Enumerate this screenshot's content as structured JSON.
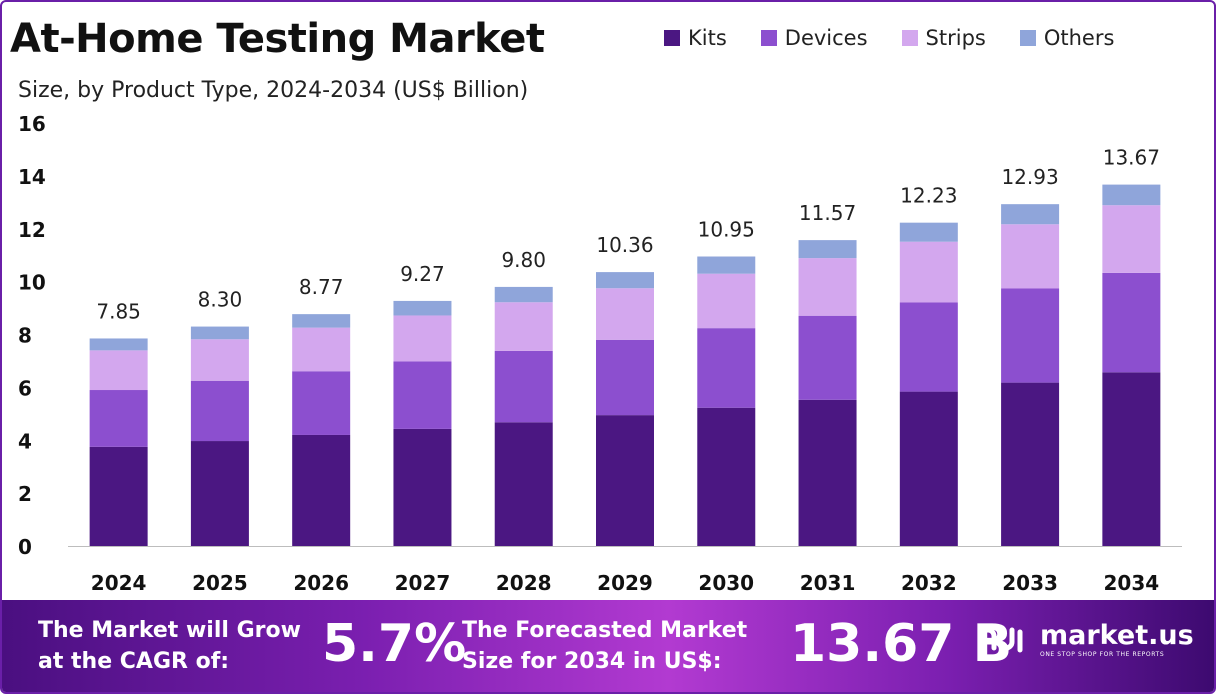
{
  "header": {
    "title": "At-Home Testing Market",
    "subtitle": "Size, by Product Type, 2024-2034 (US$ Billion)"
  },
  "legend": [
    {
      "label": "Kits",
      "color": "#4b1782"
    },
    {
      "label": "Devices",
      "color": "#8c4fcf"
    },
    {
      "label": "Strips",
      "color": "#d3a7ee"
    },
    {
      "label": "Others",
      "color": "#8fa5da"
    }
  ],
  "chart_data": {
    "type": "bar",
    "stacked": true,
    "categories": [
      "2024",
      "2025",
      "2026",
      "2027",
      "2028",
      "2029",
      "2030",
      "2031",
      "2032",
      "2033",
      "2034"
    ],
    "series": [
      {
        "name": "Kits",
        "values": [
          3.75,
          3.97,
          4.2,
          4.43,
          4.68,
          4.95,
          5.23,
          5.53,
          5.84,
          6.18,
          6.57
        ]
      },
      {
        "name": "Devices",
        "values": [
          2.15,
          2.28,
          2.41,
          2.55,
          2.7,
          2.85,
          3.01,
          3.18,
          3.37,
          3.56,
          3.76
        ]
      },
      {
        "name": "Strips",
        "values": [
          1.5,
          1.57,
          1.65,
          1.74,
          1.84,
          1.95,
          2.06,
          2.18,
          2.3,
          2.43,
          2.56
        ]
      },
      {
        "name": "Others",
        "values": [
          0.45,
          0.48,
          0.51,
          0.55,
          0.58,
          0.61,
          0.65,
          0.68,
          0.72,
          0.76,
          0.78
        ]
      }
    ],
    "totals": [
      "7.85",
      "8.30",
      "8.77",
      "9.27",
      "9.80",
      "10.36",
      "10.95",
      "11.57",
      "12.23",
      "12.93",
      "13.67"
    ],
    "ylim": [
      0,
      16
    ],
    "yticks": [
      0,
      2,
      4,
      6,
      8,
      10,
      12,
      14,
      16
    ],
    "legend_position": "top-right",
    "grid": false
  },
  "footer": {
    "cagr_text": "The Market will Grow\nat the CAGR of:",
    "cagr_value": "5.7%",
    "forecast_text": "The Forecasted Market\nSize for 2034 in US$:",
    "forecast_value": "13.67 B",
    "brand_name": "market.us",
    "brand_tagline": "ONE STOP SHOP FOR THE REPORTS"
  }
}
